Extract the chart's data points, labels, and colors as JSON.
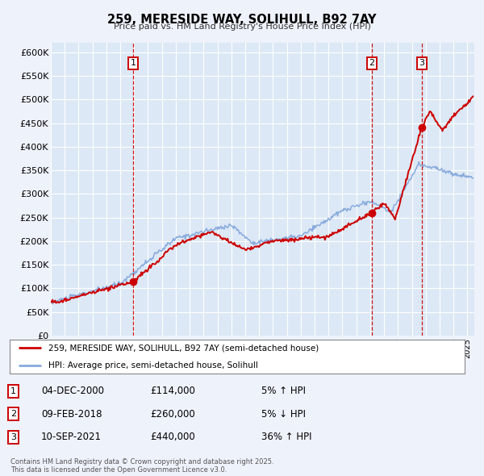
{
  "title": "259, MERESIDE WAY, SOLIHULL, B92 7AY",
  "subtitle": "Price paid vs. HM Land Registry's House Price Index (HPI)",
  "ylim": [
    0,
    620000
  ],
  "yticks": [
    0,
    50000,
    100000,
    150000,
    200000,
    250000,
    300000,
    350000,
    400000,
    450000,
    500000,
    550000,
    600000
  ],
  "ytick_labels": [
    "£0",
    "£50K",
    "£100K",
    "£150K",
    "£200K",
    "£250K",
    "£300K",
    "£350K",
    "£400K",
    "£450K",
    "£500K",
    "£550K",
    "£600K"
  ],
  "xlim_start": 1995.0,
  "xlim_end": 2025.5,
  "background_color": "#eef2fb",
  "plot_bg_color": "#dce8f5",
  "grid_color": "#ffffff",
  "red_line_color": "#cc0000",
  "blue_line_color": "#88aadd",
  "sale_points": [
    {
      "year": 2000.92,
      "price": 114000,
      "label": "1"
    },
    {
      "year": 2018.1,
      "price": 260000,
      "label": "2"
    },
    {
      "year": 2021.7,
      "price": 440000,
      "label": "3"
    }
  ],
  "legend_label_red": "259, MERESIDE WAY, SOLIHULL, B92 7AY (semi-detached house)",
  "legend_label_blue": "HPI: Average price, semi-detached house, Solihull",
  "table_rows": [
    {
      "num": "1",
      "date": "04-DEC-2000",
      "price": "£114,000",
      "pct": "5% ↑ HPI"
    },
    {
      "num": "2",
      "date": "09-FEB-2018",
      "price": "£260,000",
      "pct": "5% ↓ HPI"
    },
    {
      "num": "3",
      "date": "10-SEP-2021",
      "price": "£440,000",
      "pct": "36% ↑ HPI"
    }
  ],
  "footer": "Contains HM Land Registry data © Crown copyright and database right 2025.\nThis data is licensed under the Open Government Licence v3.0."
}
